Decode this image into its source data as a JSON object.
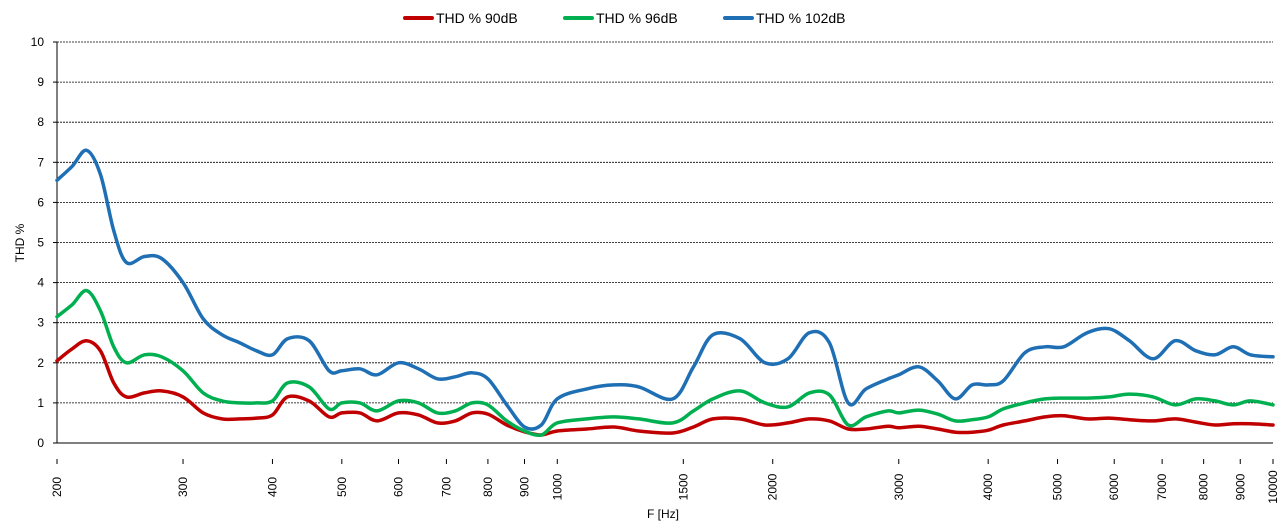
{
  "chart_data": {
    "type": "line",
    "title": "",
    "xlabel": "F [Hz]",
    "ylabel": "THD %",
    "x_scale": "log",
    "xlim": [
      200,
      10000
    ],
    "ylim": [
      0,
      10
    ],
    "grid": true,
    "legend_position": "top-center",
    "x_ticks": [
      200,
      300,
      400,
      500,
      600,
      700,
      800,
      900,
      1000,
      1500,
      2000,
      3000,
      4000,
      5000,
      6000,
      7000,
      8000,
      9000,
      10000
    ],
    "x_tick_labels": [
      "200",
      "300",
      "400",
      "500",
      "600",
      "700",
      "800",
      "900",
      "1000",
      "1500",
      "2000",
      "3000",
      "4000",
      "5000",
      "6000",
      "7000",
      "8000",
      "9000",
      "10000"
    ],
    "y_ticks": [
      0,
      1,
      2,
      3,
      4,
      5,
      6,
      7,
      8,
      9,
      10
    ],
    "y_tick_labels": [
      "0",
      "1",
      "2",
      "3",
      "4",
      "5",
      "6",
      "7",
      "8",
      "9",
      "10"
    ],
    "series": [
      {
        "name": "THD % 90dB",
        "color": "#c00000",
        "x": [
          200,
          210,
          220,
          230,
          240,
          250,
          265,
          280,
          300,
          320,
          340,
          360,
          380,
          400,
          420,
          450,
          480,
          500,
          530,
          560,
          600,
          640,
          680,
          720,
          760,
          800,
          850,
          900,
          950,
          1000,
          1100,
          1200,
          1300,
          1450,
          1550,
          1650,
          1800,
          1950,
          2100,
          2250,
          2400,
          2550,
          2700,
          2900,
          3000,
          3200,
          3400,
          3600,
          3800,
          4000,
          4200,
          4500,
          4800,
          5100,
          5500,
          5900,
          6300,
          6800,
          7300,
          7800,
          8300,
          8800,
          9300,
          10000
        ],
        "values": [
          2.05,
          2.35,
          2.55,
          2.3,
          1.5,
          1.15,
          1.25,
          1.3,
          1.15,
          0.75,
          0.6,
          0.6,
          0.62,
          0.7,
          1.15,
          1.05,
          0.65,
          0.75,
          0.75,
          0.55,
          0.75,
          0.7,
          0.5,
          0.55,
          0.75,
          0.72,
          0.45,
          0.28,
          0.2,
          0.3,
          0.35,
          0.4,
          0.3,
          0.25,
          0.4,
          0.6,
          0.6,
          0.45,
          0.5,
          0.6,
          0.55,
          0.35,
          0.35,
          0.42,
          0.38,
          0.42,
          0.35,
          0.27,
          0.27,
          0.32,
          0.45,
          0.55,
          0.65,
          0.68,
          0.6,
          0.62,
          0.58,
          0.55,
          0.6,
          0.52,
          0.45,
          0.48,
          0.48,
          0.45
        ]
      },
      {
        "name": "THD % 96dB",
        "color": "#00b050",
        "x": [
          200,
          210,
          220,
          230,
          240,
          250,
          265,
          280,
          300,
          320,
          340,
          360,
          380,
          400,
          420,
          450,
          480,
          500,
          530,
          560,
          600,
          640,
          680,
          720,
          760,
          800,
          850,
          900,
          950,
          1000,
          1100,
          1200,
          1300,
          1450,
          1550,
          1650,
          1800,
          1950,
          2100,
          2250,
          2400,
          2550,
          2700,
          2900,
          3000,
          3200,
          3400,
          3600,
          3800,
          4000,
          4200,
          4500,
          4800,
          5100,
          5500,
          5900,
          6300,
          6800,
          7300,
          7800,
          8300,
          8800,
          9300,
          10000
        ],
        "values": [
          3.15,
          3.45,
          3.8,
          3.3,
          2.4,
          2.0,
          2.2,
          2.15,
          1.8,
          1.25,
          1.05,
          1.0,
          1.0,
          1.05,
          1.5,
          1.4,
          0.85,
          1.0,
          1.0,
          0.8,
          1.05,
          1.0,
          0.75,
          0.8,
          1.0,
          0.95,
          0.55,
          0.3,
          0.2,
          0.5,
          0.6,
          0.65,
          0.6,
          0.5,
          0.8,
          1.1,
          1.3,
          1.0,
          0.9,
          1.25,
          1.2,
          0.45,
          0.65,
          0.8,
          0.75,
          0.82,
          0.72,
          0.55,
          0.58,
          0.65,
          0.85,
          1.0,
          1.1,
          1.12,
          1.12,
          1.15,
          1.22,
          1.15,
          0.95,
          1.1,
          1.05,
          0.95,
          1.05,
          0.95
        ]
      },
      {
        "name": "THD % 102dB",
        "color": "#1f6fb5",
        "x": [
          200,
          210,
          220,
          230,
          240,
          250,
          265,
          280,
          300,
          320,
          340,
          360,
          380,
          400,
          420,
          450,
          480,
          500,
          530,
          560,
          600,
          640,
          680,
          720,
          760,
          800,
          850,
          900,
          950,
          1000,
          1100,
          1200,
          1300,
          1450,
          1550,
          1650,
          1800,
          1950,
          2100,
          2250,
          2400,
          2550,
          2700,
          2900,
          3000,
          3200,
          3400,
          3600,
          3800,
          4000,
          4200,
          4500,
          4800,
          5100,
          5500,
          5900,
          6300,
          6800,
          7300,
          7800,
          8300,
          8800,
          9300,
          10000
        ],
        "values": [
          6.55,
          6.9,
          7.3,
          6.7,
          5.3,
          4.5,
          4.65,
          4.6,
          4.0,
          3.1,
          2.7,
          2.5,
          2.3,
          2.2,
          2.6,
          2.55,
          1.8,
          1.8,
          1.85,
          1.7,
          2.0,
          1.85,
          1.6,
          1.65,
          1.75,
          1.6,
          0.95,
          0.4,
          0.45,
          1.1,
          1.35,
          1.45,
          1.4,
          1.1,
          1.9,
          2.7,
          2.6,
          2.0,
          2.1,
          2.75,
          2.5,
          1.0,
          1.35,
          1.6,
          1.7,
          1.9,
          1.55,
          1.1,
          1.45,
          1.45,
          1.55,
          2.25,
          2.4,
          2.4,
          2.75,
          2.85,
          2.55,
          2.1,
          2.55,
          2.3,
          2.2,
          2.4,
          2.2,
          2.15
        ]
      }
    ]
  }
}
